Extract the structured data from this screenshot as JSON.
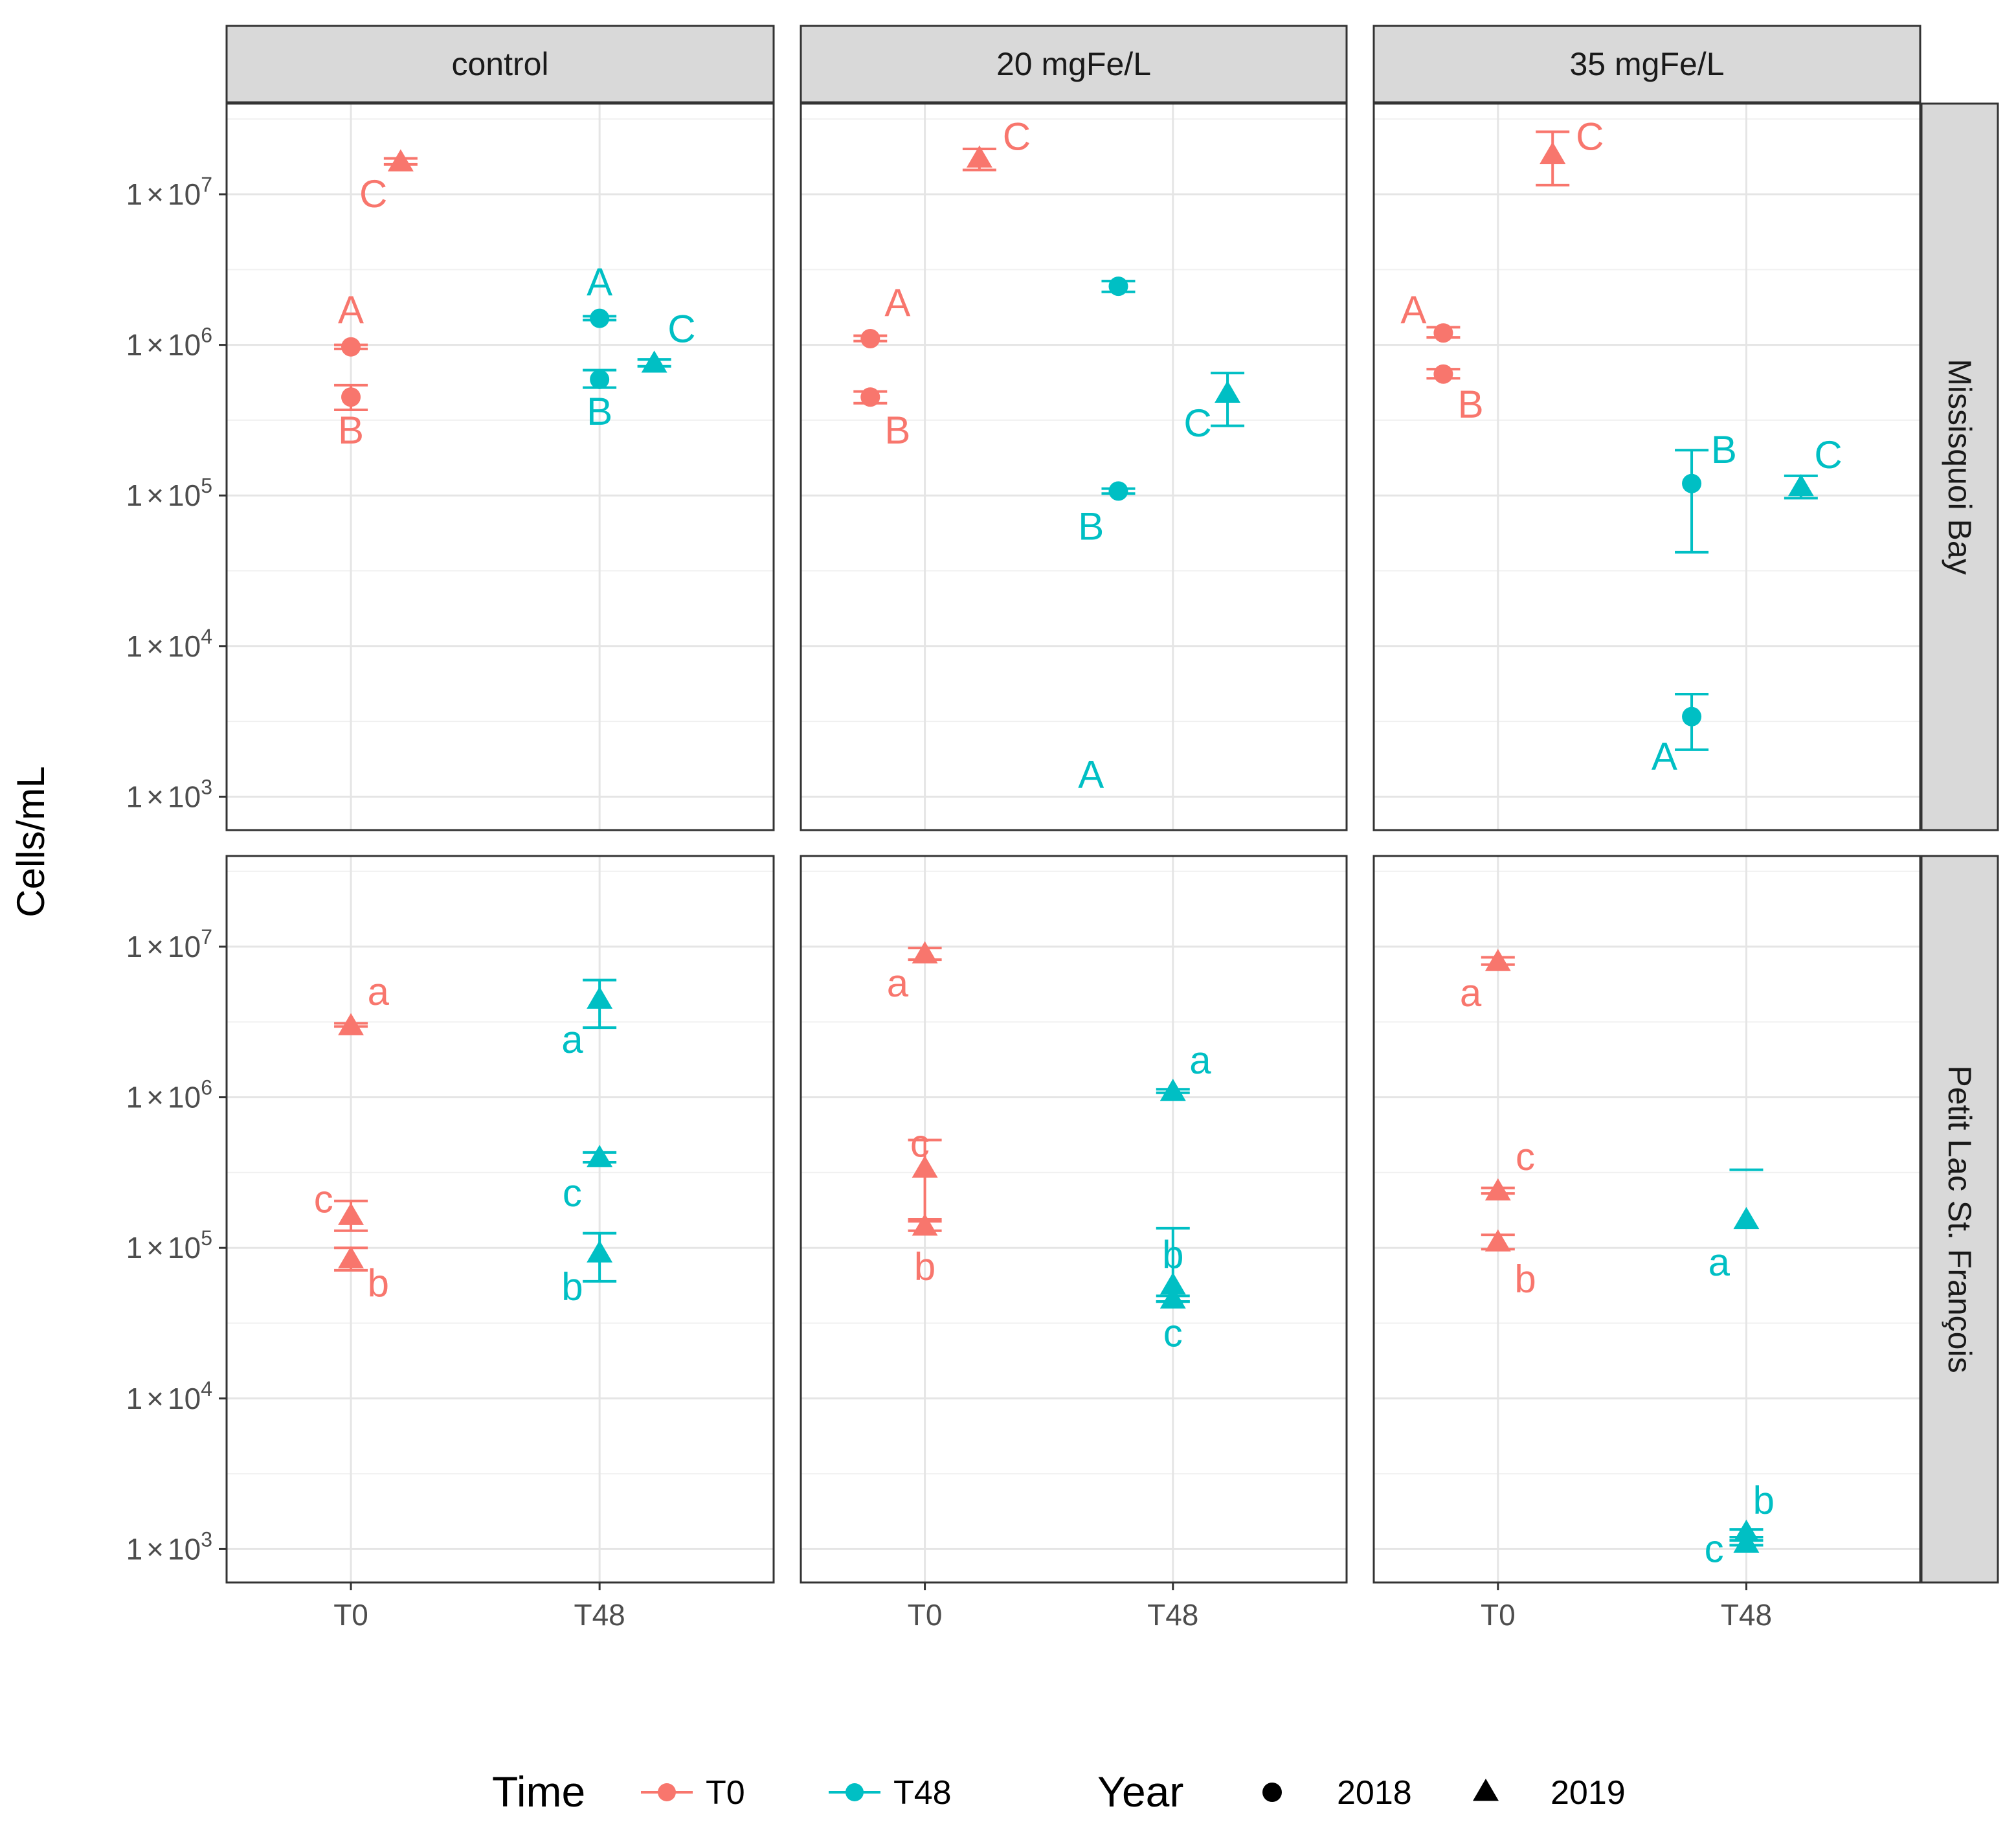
{
  "chart_data": {
    "type": "scatter",
    "ylabel": "Cells/mL",
    "yscale": "log10",
    "ylim": [
      600,
      40000000
    ],
    "ytick_labels": [
      {
        "value": 1000,
        "mant": "1",
        "times": "×",
        "base": "10",
        "exp": "3"
      },
      {
        "value": 10000,
        "mant": "1",
        "times": "×",
        "base": "10",
        "exp": "4"
      },
      {
        "value": 100000,
        "mant": "1",
        "times": "×",
        "base": "10",
        "exp": "5"
      },
      {
        "value": 1000000,
        "mant": "1",
        "times": "×",
        "base": "10",
        "exp": "6"
      },
      {
        "value": 10000000,
        "mant": "1",
        "times": "×",
        "base": "10",
        "exp": "7"
      }
    ],
    "x_categories": [
      "T0",
      "T48"
    ],
    "columns": [
      "control",
      "20 mgFe/L",
      "35 mgFe/L"
    ],
    "rows": [
      "Missisquoi Bay",
      "Petit Lac St. François"
    ],
    "colors": {
      "T0": "#F8766D",
      "T48": "#00BFC4"
    },
    "grid": true,
    "legend": {
      "placement": "bottom",
      "time_title": "Time",
      "time_items": [
        "T0",
        "T48"
      ],
      "year_title": "Year",
      "year_items": [
        "2018",
        "2019"
      ]
    },
    "points": [
      {
        "row": 0,
        "col": 0,
        "time": "T0",
        "year": "2018",
        "dx": 0.0,
        "y": 970000,
        "lo": 940000,
        "hi": 1000000,
        "label": "A",
        "ly": 1700000,
        "ldx": 0.0
      },
      {
        "row": 0,
        "col": 0,
        "time": "T0",
        "year": "2018",
        "dx": 0.0,
        "y": 450000,
        "lo": 370000,
        "hi": 540000,
        "label": "B",
        "ly": 270000,
        "ldx": 0.0
      },
      {
        "row": 0,
        "col": 0,
        "time": "T0",
        "year": "2019",
        "dx": 0.2,
        "y": 16500000,
        "lo": 15800000,
        "hi": 17300000,
        "label": "C",
        "ly": 10000000,
        "ldx": 0.09
      },
      {
        "row": 0,
        "col": 0,
        "time": "T48",
        "year": "2018",
        "dx": 0.0,
        "y": 1500000,
        "lo": 1460000,
        "hi": 1550000,
        "label": "A",
        "ly": 2600000,
        "ldx": 0.0
      },
      {
        "row": 0,
        "col": 0,
        "time": "T48",
        "year": "2018",
        "dx": 0.0,
        "y": 590000,
        "lo": 520000,
        "hi": 680000,
        "label": "B",
        "ly": 360000,
        "ldx": 0.0
      },
      {
        "row": 0,
        "col": 0,
        "time": "T48",
        "year": "2019",
        "dx": 0.22,
        "y": 760000,
        "lo": 720000,
        "hi": 800000,
        "label": "C",
        "ly": 1270000,
        "ldx": 0.33
      },
      {
        "row": 0,
        "col": 1,
        "time": "T0",
        "year": "2018",
        "dx": -0.22,
        "y": 1100000,
        "lo": 1060000,
        "hi": 1150000,
        "label": "A",
        "ly": 1900000,
        "ldx": -0.11
      },
      {
        "row": 0,
        "col": 1,
        "time": "T0",
        "year": "2018",
        "dx": -0.22,
        "y": 450000,
        "lo": 410000,
        "hi": 490000,
        "label": "B",
        "ly": 270000,
        "ldx": -0.11
      },
      {
        "row": 0,
        "col": 1,
        "time": "T0",
        "year": "2019",
        "dx": 0.22,
        "y": 17500000,
        "lo": 14500000,
        "hi": 20000000,
        "label": "C",
        "ly": 24000000,
        "ldx": 0.37
      },
      {
        "row": 0,
        "col": 1,
        "time": "T48",
        "year": "2018",
        "dx": -0.22,
        "y": 107000,
        "lo": 103000,
        "hi": 111000,
        "label": "B",
        "ly": 62000,
        "ldx": -0.33
      },
      {
        "row": 0,
        "col": 1,
        "time": "T48",
        "year": "2018",
        "dx": -0.22,
        "y": 2450000,
        "lo": 2250000,
        "hi": 2650000,
        "label": "A",
        "ly": 1400,
        "ldx": -0.33,
        "yunit": 0.001
      },
      {
        "row": 0,
        "col": 1,
        "time": "T48",
        "year": "2019",
        "dx": 0.22,
        "y": 480000,
        "lo": 290000,
        "hi": 650000,
        "label": "C",
        "ly": 300000,
        "ldx": 0.1
      },
      {
        "row": 0,
        "col": 2,
        "time": "T0",
        "year": "2018",
        "dx": -0.22,
        "y": 1200000,
        "lo": 1120000,
        "hi": 1310000,
        "label": "A",
        "ly": 1700000,
        "ldx": -0.34
      },
      {
        "row": 0,
        "col": 2,
        "time": "T0",
        "year": "2018",
        "dx": -0.22,
        "y": 640000,
        "lo": 600000,
        "hi": 690000,
        "label": "B",
        "ly": 400000,
        "ldx": -0.11
      },
      {
        "row": 0,
        "col": 2,
        "time": "T0",
        "year": "2019",
        "dx": 0.22,
        "y": 18500000,
        "lo": 11500000,
        "hi": 26000000,
        "label": "C",
        "ly": 24000000,
        "ldx": 0.37
      },
      {
        "row": 0,
        "col": 2,
        "time": "T48",
        "year": "2018",
        "dx": -0.22,
        "y": 120000,
        "lo": 42000,
        "hi": 200000,
        "label": "B",
        "ly": 200000,
        "ldx": -0.09
      },
      {
        "row": 0,
        "col": 2,
        "time": "T48",
        "year": "2018",
        "dx": -0.22,
        "y": 3400,
        "lo": 2050,
        "hi": 4800,
        "label": "A",
        "ly": 1850,
        "ldx": -0.33
      },
      {
        "row": 0,
        "col": 2,
        "time": "T48",
        "year": "2019",
        "dx": 0.22,
        "y": 115000,
        "lo": 96000,
        "hi": 135000,
        "label": "C",
        "ly": 185000,
        "ldx": 0.33
      },
      {
        "row": 1,
        "col": 0,
        "time": "T0",
        "year": "2019",
        "dx": 0.0,
        "y": 3000000,
        "lo": 2950000,
        "hi": 3100000,
        "label": "a",
        "ly": 5000000,
        "ldx": 0.11
      },
      {
        "row": 1,
        "col": 0,
        "time": "T0",
        "year": "2019",
        "dx": 0.0,
        "y": 165000,
        "lo": 130000,
        "hi": 205000,
        "label": "c",
        "ly": 210000,
        "ldx": -0.11
      },
      {
        "row": 1,
        "col": 0,
        "time": "T0",
        "year": "2019",
        "dx": 0.0,
        "y": 85000,
        "lo": 71000,
        "hi": 100000,
        "label": "b",
        "ly": 58000,
        "ldx": 0.11
      },
      {
        "row": 1,
        "col": 0,
        "time": "T48",
        "year": "2019",
        "dx": 0.0,
        "y": 4500000,
        "lo": 2900000,
        "hi": 6000000,
        "label": "a",
        "ly": 2400000,
        "ldx": -0.11
      },
      {
        "row": 1,
        "col": 0,
        "time": "T48",
        "year": "2019",
        "dx": 0.0,
        "y": 400000,
        "lo": 370000,
        "hi": 430000,
        "label": "c",
        "ly": 230000,
        "ldx": -0.11
      },
      {
        "row": 1,
        "col": 0,
        "time": "T48",
        "year": "2019",
        "dx": 0.0,
        "y": 93000,
        "lo": 60000,
        "hi": 125000,
        "label": "b",
        "ly": 55000,
        "ldx": -0.11
      },
      {
        "row": 1,
        "col": 1,
        "time": "T0",
        "year": "2019",
        "dx": 0.0,
        "y": 9000000,
        "lo": 8200000,
        "hi": 9800000,
        "label": "a",
        "ly": 5700000,
        "ldx": -0.11
      },
      {
        "row": 1,
        "col": 1,
        "time": "T0",
        "year": "2019",
        "dx": 0.0,
        "y": 340000,
        "lo": 155000,
        "hi": 520000,
        "label": "c",
        "ly": 490000,
        "ldx": -0.02
      },
      {
        "row": 1,
        "col": 1,
        "time": "T0",
        "year": "2019",
        "dx": 0.0,
        "y": 140000,
        "lo": 130000,
        "hi": 150000,
        "label": "b",
        "ly": 75000,
        "ldx": 0.0
      },
      {
        "row": 1,
        "col": 1,
        "time": "T48",
        "year": "2019",
        "dx": 0.0,
        "y": 1100000,
        "lo": 1070000,
        "hi": 1130000,
        "label": "a",
        "ly": 1750000,
        "ldx": 0.11
      },
      {
        "row": 1,
        "col": 1,
        "time": "T48",
        "year": "2019",
        "dx": 0.0,
        "y": 57000,
        "lo": 44000,
        "hi": 135000,
        "label": "b",
        "ly": 90000,
        "ldx": 0.0
      },
      {
        "row": 1,
        "col": 1,
        "time": "T48",
        "year": "2019",
        "dx": 0.0,
        "y": 46000,
        "lo": 44000,
        "hi": 48000,
        "label": "c",
        "ly": 27000,
        "ldx": 0.0
      },
      {
        "row": 1,
        "col": 2,
        "time": "T0",
        "year": "2019",
        "dx": 0.0,
        "y": 8000000,
        "lo": 7600000,
        "hi": 8500000,
        "label": "a",
        "ly": 4900000,
        "ldx": -0.11
      },
      {
        "row": 1,
        "col": 2,
        "time": "T0",
        "year": "2019",
        "dx": 0.0,
        "y": 240000,
        "lo": 230000,
        "hi": 250000,
        "label": "c",
        "ly": 400000,
        "ldx": 0.11
      },
      {
        "row": 1,
        "col": 2,
        "time": "T0",
        "year": "2019",
        "dx": 0.0,
        "y": 110000,
        "lo": 98000,
        "hi": 122000,
        "label": "b",
        "ly": 62000,
        "ldx": 0.11
      },
      {
        "row": 1,
        "col": 2,
        "time": "T48",
        "year": "2019",
        "dx": 0.0,
        "y": 155000,
        "lo": null,
        "hi": 330000,
        "label": "a",
        "ly": 80000,
        "ldx": -0.11
      },
      {
        "row": 1,
        "col": 2,
        "time": "T48",
        "year": "2019",
        "dx": 0.0,
        "y": 1300,
        "lo": 1200,
        "hi": 1350,
        "label": "b",
        "ly": 2100,
        "ldx": 0.07
      },
      {
        "row": 1,
        "col": 2,
        "time": "T48",
        "year": "2019",
        "dx": 0.0,
        "y": 1100,
        "lo": 1060,
        "hi": 1140,
        "label": "c",
        "ly": 1000,
        "ldx": -0.13
      }
    ]
  }
}
